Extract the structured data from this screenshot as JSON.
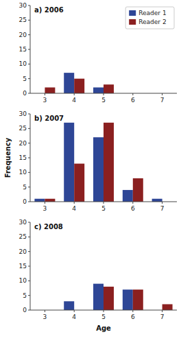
{
  "chart_data": [
    {
      "type": "bar",
      "title": "a) 2006",
      "categories": [
        3,
        4,
        5,
        6,
        7
      ],
      "series": [
        {
          "name": "Reader 1",
          "color": "#2E4696",
          "values": [
            0,
            7,
            2,
            0,
            0
          ]
        },
        {
          "name": "Reader 2",
          "color": "#8B2020",
          "values": [
            2,
            5,
            3,
            0,
            0
          ]
        }
      ],
      "ylim": [
        0,
        30
      ],
      "yticks": [
        0,
        5,
        10,
        15,
        20,
        25,
        30
      ],
      "legend": "upper-right"
    },
    {
      "type": "bar",
      "title": "b) 2007",
      "categories": [
        3,
        4,
        5,
        6,
        7
      ],
      "series": [
        {
          "color": "#2E4696",
          "values": [
            1,
            27,
            22,
            4,
            1
          ]
        },
        {
          "color": "#8B2020",
          "values": [
            1,
            13,
            27,
            8,
            0
          ]
        }
      ],
      "ylim": [
        0,
        30
      ],
      "yticks": [
        0,
        5,
        10,
        15,
        20,
        25,
        30
      ],
      "y_label": "Frequency"
    },
    {
      "type": "bar",
      "title": "c) 2008",
      "categories": [
        3,
        4,
        5,
        6,
        7
      ],
      "series": [
        {
          "color": "#2E4696",
          "values": [
            0,
            3,
            9,
            7,
            0
          ]
        },
        {
          "color": "#8B2020",
          "values": [
            0,
            0,
            8,
            7,
            2
          ]
        }
      ],
      "ylim": [
        0,
        30
      ],
      "yticks": [
        0,
        5,
        10,
        15,
        20,
        25,
        30
      ],
      "x_label": "Age"
    }
  ]
}
